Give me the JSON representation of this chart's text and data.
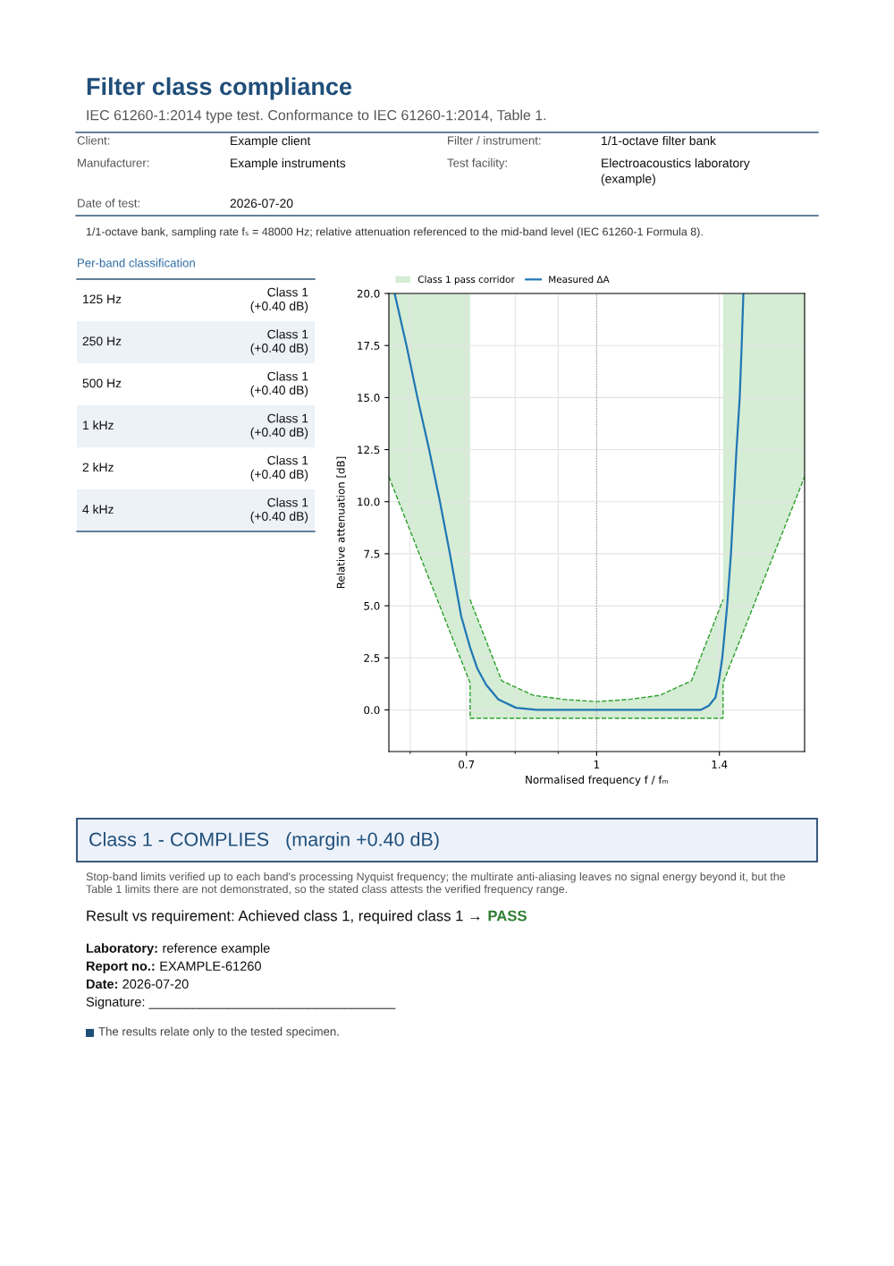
{
  "chart_data": [
    {
      "type": "other",
      "title": "Filter class compliance",
      "subtitle": "IEC 61260-1:2014 type test. Conformance to IEC 61260-1:2014, Table 1.",
      "annotations": [
        "Client:",
        "Example client",
        "Filter / instrument:",
        "1/1-octave filter bank",
        "Manufacturer:",
        "Example instruments",
        "Test facility:",
        "Electroacoustics laboratory (example)",
        "Date of test:",
        "2026-07-20",
        "1/1-octave bank, sampling rate fₛ = 48000 Hz; relative attenuation referenced to the mid-band level (IEC 61260-1 Formula 8)."
      ]
    },
    {
      "type": "other",
      "title": "Per-band classification",
      "annotations": [
        "125 Hz",
        "Class 1 (+0.40 dB)",
        "250 Hz",
        "Class 1 (+0.40 dB)",
        "500 Hz",
        "Class 1 (+0.40 dB)",
        "1 kHz",
        "Class 1 (+0.40 dB)",
        "2 kHz",
        "Class 1 (+0.40 dB)",
        "4 kHz",
        "Class 1 (+0.40 dB)"
      ]
    },
    {
      "type": "line",
      "xlabel": "Normalised frequency f / fₘ",
      "ylabel": "Relative attenuation [dB]",
      "log": "x",
      "xlim": [
        0.566,
        1.768
      ],
      "xticks": [
        {
          "value": 0.6,
          "label": null
        },
        0.7,
        {
          "value": 0.8,
          "label": null
        },
        {
          "value": 0.9,
          "label": null
        },
        1,
        1.4
      ],
      "ylim": [
        -2,
        20
      ],
      "yticks": [
        {
          "value": 0,
          "label": "0.0"
        },
        2.5,
        {
          "value": 5,
          "label": "5.0"
        },
        7.5,
        {
          "value": 10,
          "label": "10.0"
        },
        12.5,
        {
          "value": 15,
          "label": "15.0"
        },
        17.5,
        {
          "value": 20,
          "label": "20.0"
        }
      ],
      "grid": true,
      "legend": "top",
      "ref_lines": [
        {
          "axis": "x",
          "value": 1,
          "color": "#999999",
          "line_style": "dotted"
        }
      ],
      "series": [
        {
          "name": "Class 1 pass corridor",
          "type": "line",
          "color": "#2ca02c",
          "line_style": "dashed",
          "x": [
            0.566,
            0.707,
            0.707,
            0.771,
            0.841,
            0.917,
            1,
            1.091,
            1.189,
            1.297,
            1.414,
            1.414,
            1.768
          ],
          "values": [
            11.2,
            1.3,
            -0.4,
            -0.4,
            -0.4,
            -0.4,
            -0.4,
            -0.4,
            -0.4,
            -0.4,
            -0.4,
            1.3,
            11.2
          ],
          "lower": [
            11.2,
            1.3,
            -0.4,
            -0.4,
            -0.4,
            -0.4,
            -0.4,
            -0.4,
            -0.4,
            -0.4,
            -0.4,
            1.3,
            11.2
          ],
          "upper": [
            20,
            20,
            5.3,
            1.4,
            0.7,
            0.5,
            0.4,
            0.5,
            0.7,
            1.4,
            5.3,
            20,
            20
          ]
        },
        {
          "type": "line",
          "color": "#2ca02c",
          "line_style": "dashed",
          "x": [
            0.707,
            0.771,
            0.841,
            0.917,
            1,
            1.091,
            1.189,
            1.297,
            1.414
          ],
          "values": [
            5.3,
            1.4,
            0.7,
            0.5,
            0.4,
            0.5,
            0.7,
            1.4,
            5.3
          ]
        },
        {
          "name": "Measured ΔA",
          "type": "line",
          "color": "#1f77b4",
          "line_style": "solid",
          "x": [
            0.575,
            0.594,
            0.612,
            0.632,
            0.651,
            0.669,
            0.69,
            0.707,
            0.721,
            0.739,
            0.764,
            0.802,
            0.849,
            0.9,
            1,
            1.1,
            1.2,
            1.33,
            1.36,
            1.385,
            1.398,
            1.411,
            1.43,
            1.445,
            1.456,
            1.467,
            1.48,
            1.488,
            1.495
          ],
          "values": [
            20,
            17.5,
            15,
            12.5,
            10,
            7.5,
            4.5,
            3.0,
            2.0,
            1.2,
            0.5,
            0.1,
            0,
            0,
            0,
            0,
            0,
            0,
            0.2,
            0.6,
            1.4,
            2.5,
            5,
            7.5,
            10,
            12.5,
            15,
            17.5,
            20
          ]
        }
      ]
    },
    {
      "type": "other",
      "title": "Class 1 - COMPLIES   (margin +0.40 dB)",
      "annotations": [
        "Stop-band limits verified up to each band's processing Nyquist frequency; the multirate anti-aliasing leaves no signal energy beyond it, but the Table 1 limits there are not demonstrated, so the stated class attests the verified frequency range.",
        "Result vs requirement: Achieved class 1, required class 1 →",
        "PASS",
        "Laboratory:",
        "reference example",
        "Report no.:",
        "EXAMPLE-61260",
        "Date:",
        "2026-07-20",
        "Signature: __________________________________",
        "The results relate only to the tested specimen."
      ]
    }
  ]
}
